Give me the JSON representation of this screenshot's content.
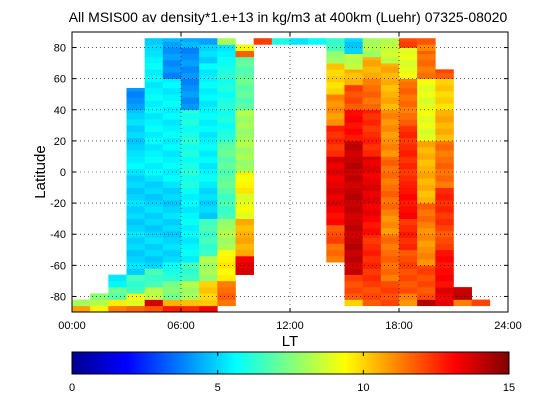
{
  "chart_data": {
    "type": "heatmap",
    "title": "All MSIS00 av density*1.e+13 in kg/m3 at 400km (Luehr) 07325-08020",
    "xlabel": "LT",
    "ylabel": "Latitude",
    "xlim": [
      0,
      24
    ],
    "ylim": [
      -90,
      90
    ],
    "xticks": [
      {
        "value": 0,
        "label": "00:00"
      },
      {
        "value": 6,
        "label": "06:00"
      },
      {
        "value": 12,
        "label": "12:00"
      },
      {
        "value": 18,
        "label": "18:00"
      },
      {
        "value": 24,
        "label": "24:00"
      }
    ],
    "yticks": [
      -80,
      -60,
      -40,
      -20,
      0,
      20,
      40,
      60,
      80
    ],
    "grid": true,
    "colormap": "jet",
    "colorbar": {
      "min": 0,
      "max": 15,
      "ticks": [
        0,
        5,
        10,
        15
      ],
      "position": "bottom"
    },
    "cell_size": {
      "lt_hours": 1,
      "lat_deg": 4
    },
    "columns": [
      {
        "lt": 0,
        "segments": [
          {
            "from": -90,
            "to": -86,
            "v": 11.0
          },
          {
            "from": -86,
            "to": -82,
            "v": 8.5
          }
        ]
      },
      {
        "lt": 1,
        "segments": [
          {
            "from": -90,
            "to": -86,
            "v": 10.0
          },
          {
            "from": -86,
            "to": -82,
            "v": 9.0
          },
          {
            "from": -82,
            "to": -78,
            "v": 8.0
          }
        ]
      },
      {
        "lt": 2,
        "segments": [
          {
            "from": -90,
            "to": -86,
            "v": 12.0
          },
          {
            "from": -86,
            "to": -82,
            "v": 10.0
          },
          {
            "from": -82,
            "to": -74,
            "v": 7.5
          },
          {
            "from": -74,
            "to": -66,
            "v": 6.0
          }
        ]
      },
      {
        "lt": 3,
        "segments": [
          {
            "from": -90,
            "to": -86,
            "v": 12.0
          },
          {
            "from": -86,
            "to": -78,
            "v": 9.5
          },
          {
            "from": -78,
            "to": -66,
            "v": 7.0
          },
          {
            "from": -66,
            "to": 10,
            "v": 5.5
          },
          {
            "from": 10,
            "to": 40,
            "v": 5.0
          },
          {
            "from": 40,
            "to": 54,
            "v": 4.0
          }
        ]
      },
      {
        "lt": 4,
        "segments": [
          {
            "from": -90,
            "to": -86,
            "v": 12.5
          },
          {
            "from": -86,
            "to": -82,
            "v": 14.0
          },
          {
            "from": -82,
            "to": -74,
            "v": 9.0
          },
          {
            "from": -74,
            "to": -62,
            "v": 7.0
          },
          {
            "from": -62,
            "to": 78,
            "v": 5.5
          },
          {
            "from": 78,
            "to": 86,
            "v": 5.0
          }
        ]
      },
      {
        "lt": 5,
        "segments": [
          {
            "from": -90,
            "to": -86,
            "v": 13.0
          },
          {
            "from": -86,
            "to": -82,
            "v": 11.0
          },
          {
            "from": -82,
            "to": -70,
            "v": 8.0
          },
          {
            "from": -70,
            "to": -58,
            "v": 6.5
          },
          {
            "from": -58,
            "to": 60,
            "v": 5.5
          },
          {
            "from": 60,
            "to": 80,
            "v": 4.0
          },
          {
            "from": 80,
            "to": 86,
            "v": 4.5
          }
        ]
      },
      {
        "lt": 6,
        "segments": [
          {
            "from": -90,
            "to": -86,
            "v": 13.0
          },
          {
            "from": -86,
            "to": -82,
            "v": 11.0
          },
          {
            "from": -82,
            "to": -70,
            "v": 8.5
          },
          {
            "from": -70,
            "to": -58,
            "v": 7.0
          },
          {
            "from": -58,
            "to": 40,
            "v": 6.0
          },
          {
            "from": 40,
            "to": 80,
            "v": 4.0
          },
          {
            "from": 80,
            "to": 86,
            "v": 4.5
          }
        ]
      },
      {
        "lt": 7,
        "segments": [
          {
            "from": -90,
            "to": -86,
            "v": 14.0
          },
          {
            "from": -86,
            "to": -70,
            "v": 10.5
          },
          {
            "from": -70,
            "to": -54,
            "v": 8.5
          },
          {
            "from": -54,
            "to": -30,
            "v": 7.0
          },
          {
            "from": -30,
            "to": 70,
            "v": 5.5
          },
          {
            "from": 70,
            "to": 82,
            "v": 5.0
          },
          {
            "from": 82,
            "to": 86,
            "v": 4.5
          }
        ]
      },
      {
        "lt": 8,
        "segments": [
          {
            "from": -86,
            "to": -70,
            "v": 12.0
          },
          {
            "from": -70,
            "to": -50,
            "v": 10.0
          },
          {
            "from": -50,
            "to": -30,
            "v": 8.5
          },
          {
            "from": -30,
            "to": 20,
            "v": 7.0
          },
          {
            "from": 20,
            "to": 70,
            "v": 6.0
          },
          {
            "from": 70,
            "to": 82,
            "v": 5.5
          },
          {
            "from": 82,
            "to": 86,
            "v": 8.0
          }
        ]
      },
      {
        "lt": 9,
        "segments": [
          {
            "from": -66,
            "to": -54,
            "v": 14.0
          },
          {
            "from": -54,
            "to": -30,
            "v": 11.0
          },
          {
            "from": -30,
            "to": 0,
            "v": 9.5
          },
          {
            "from": 0,
            "to": 40,
            "v": 8.0
          },
          {
            "from": 40,
            "to": 74,
            "v": 7.0
          },
          {
            "from": 74,
            "to": 78,
            "v": 12.0
          },
          {
            "from": 78,
            "to": 82,
            "v": 9.0
          }
        ]
      },
      {
        "lt": 10,
        "segments": [
          {
            "from": 82,
            "to": 86,
            "v": 12.0
          }
        ]
      },
      {
        "lt": 11,
        "segments": [
          {
            "from": 82,
            "to": 86,
            "v": 6.0
          }
        ]
      },
      {
        "lt": 12,
        "segments": [
          {
            "from": 82,
            "to": 86,
            "v": 5.5
          }
        ]
      },
      {
        "lt": 13,
        "segments": [
          {
            "from": 82,
            "to": 86,
            "v": 5.5
          }
        ]
      },
      {
        "lt": 14,
        "segments": [
          {
            "from": -58,
            "to": -46,
            "v": 12.0
          },
          {
            "from": -46,
            "to": -34,
            "v": 12.5
          },
          {
            "from": -34,
            "to": 10,
            "v": 13.5
          },
          {
            "from": 10,
            "to": 30,
            "v": 12.5
          },
          {
            "from": 30,
            "to": 50,
            "v": 11.0
          },
          {
            "from": 50,
            "to": 70,
            "v": 10.0
          },
          {
            "from": 70,
            "to": 78,
            "v": 8.0
          },
          {
            "from": 78,
            "to": 86,
            "v": 6.5
          }
        ]
      },
      {
        "lt": 15,
        "segments": [
          {
            "from": -86,
            "to": -82,
            "v": 10.5
          },
          {
            "from": -82,
            "to": -66,
            "v": 12.5
          },
          {
            "from": -66,
            "to": -30,
            "v": 14.5
          },
          {
            "from": -30,
            "to": 20,
            "v": 14.0
          },
          {
            "from": 20,
            "to": 40,
            "v": 13.0
          },
          {
            "from": 40,
            "to": 56,
            "v": 12.0
          },
          {
            "from": 56,
            "to": 66,
            "v": 10.5
          },
          {
            "from": 66,
            "to": 76,
            "v": 8.5
          },
          {
            "from": 76,
            "to": 86,
            "v": 5.0
          }
        ]
      },
      {
        "lt": 16,
        "segments": [
          {
            "from": -86,
            "to": -70,
            "v": 12.5
          },
          {
            "from": -70,
            "to": -40,
            "v": 13.0
          },
          {
            "from": -40,
            "to": 10,
            "v": 13.5
          },
          {
            "from": 10,
            "to": 40,
            "v": 12.5
          },
          {
            "from": 40,
            "to": 60,
            "v": 11.5
          },
          {
            "from": 60,
            "to": 74,
            "v": 10.5
          },
          {
            "from": 74,
            "to": 86,
            "v": 8.0
          }
        ]
      },
      {
        "lt": 17,
        "segments": [
          {
            "from": -86,
            "to": -70,
            "v": 12.5
          },
          {
            "from": -70,
            "to": -40,
            "v": 12.0
          },
          {
            "from": -40,
            "to": 10,
            "v": 11.5
          },
          {
            "from": 10,
            "to": 40,
            "v": 11.0
          },
          {
            "from": 40,
            "to": 70,
            "v": 10.5
          },
          {
            "from": 70,
            "to": 86,
            "v": 8.5
          }
        ]
      },
      {
        "lt": 18,
        "segments": [
          {
            "from": -86,
            "to": -78,
            "v": 11.5
          },
          {
            "from": -78,
            "to": -50,
            "v": 12.5
          },
          {
            "from": -50,
            "to": -10,
            "v": 13.0
          },
          {
            "from": -10,
            "to": 30,
            "v": 12.5
          },
          {
            "from": 30,
            "to": 60,
            "v": 11.5
          },
          {
            "from": 60,
            "to": 80,
            "v": 9.0
          },
          {
            "from": 80,
            "to": 86,
            "v": 12.0
          }
        ]
      },
      {
        "lt": 19,
        "segments": [
          {
            "from": -86,
            "to": -82,
            "v": 14.5
          },
          {
            "from": -82,
            "to": -60,
            "v": 12.5
          },
          {
            "from": -60,
            "to": -20,
            "v": 11.5
          },
          {
            "from": -20,
            "to": 20,
            "v": 10.5
          },
          {
            "from": 20,
            "to": 60,
            "v": 9.0
          },
          {
            "from": 60,
            "to": 78,
            "v": 11.5
          },
          {
            "from": 78,
            "to": 82,
            "v": 11.0
          },
          {
            "from": 82,
            "to": 86,
            "v": 12.0
          }
        ]
      },
      {
        "lt": 20,
        "segments": [
          {
            "from": -86,
            "to": -74,
            "v": 14.0
          },
          {
            "from": -74,
            "to": -50,
            "v": 13.5
          },
          {
            "from": -50,
            "to": -10,
            "v": 12.5
          },
          {
            "from": -10,
            "to": 20,
            "v": 11.5
          },
          {
            "from": 20,
            "to": 40,
            "v": 10.5
          },
          {
            "from": 40,
            "to": 60,
            "v": 10.0
          },
          {
            "from": 60,
            "to": 66,
            "v": 12.0
          }
        ]
      },
      {
        "lt": 21,
        "segments": [
          {
            "from": -86,
            "to": -82,
            "v": 12.0
          },
          {
            "from": -82,
            "to": -74,
            "v": 14.5
          }
        ]
      },
      {
        "lt": 22,
        "segments": [
          {
            "from": -86,
            "to": -82,
            "v": 12.5
          }
        ]
      }
    ]
  }
}
